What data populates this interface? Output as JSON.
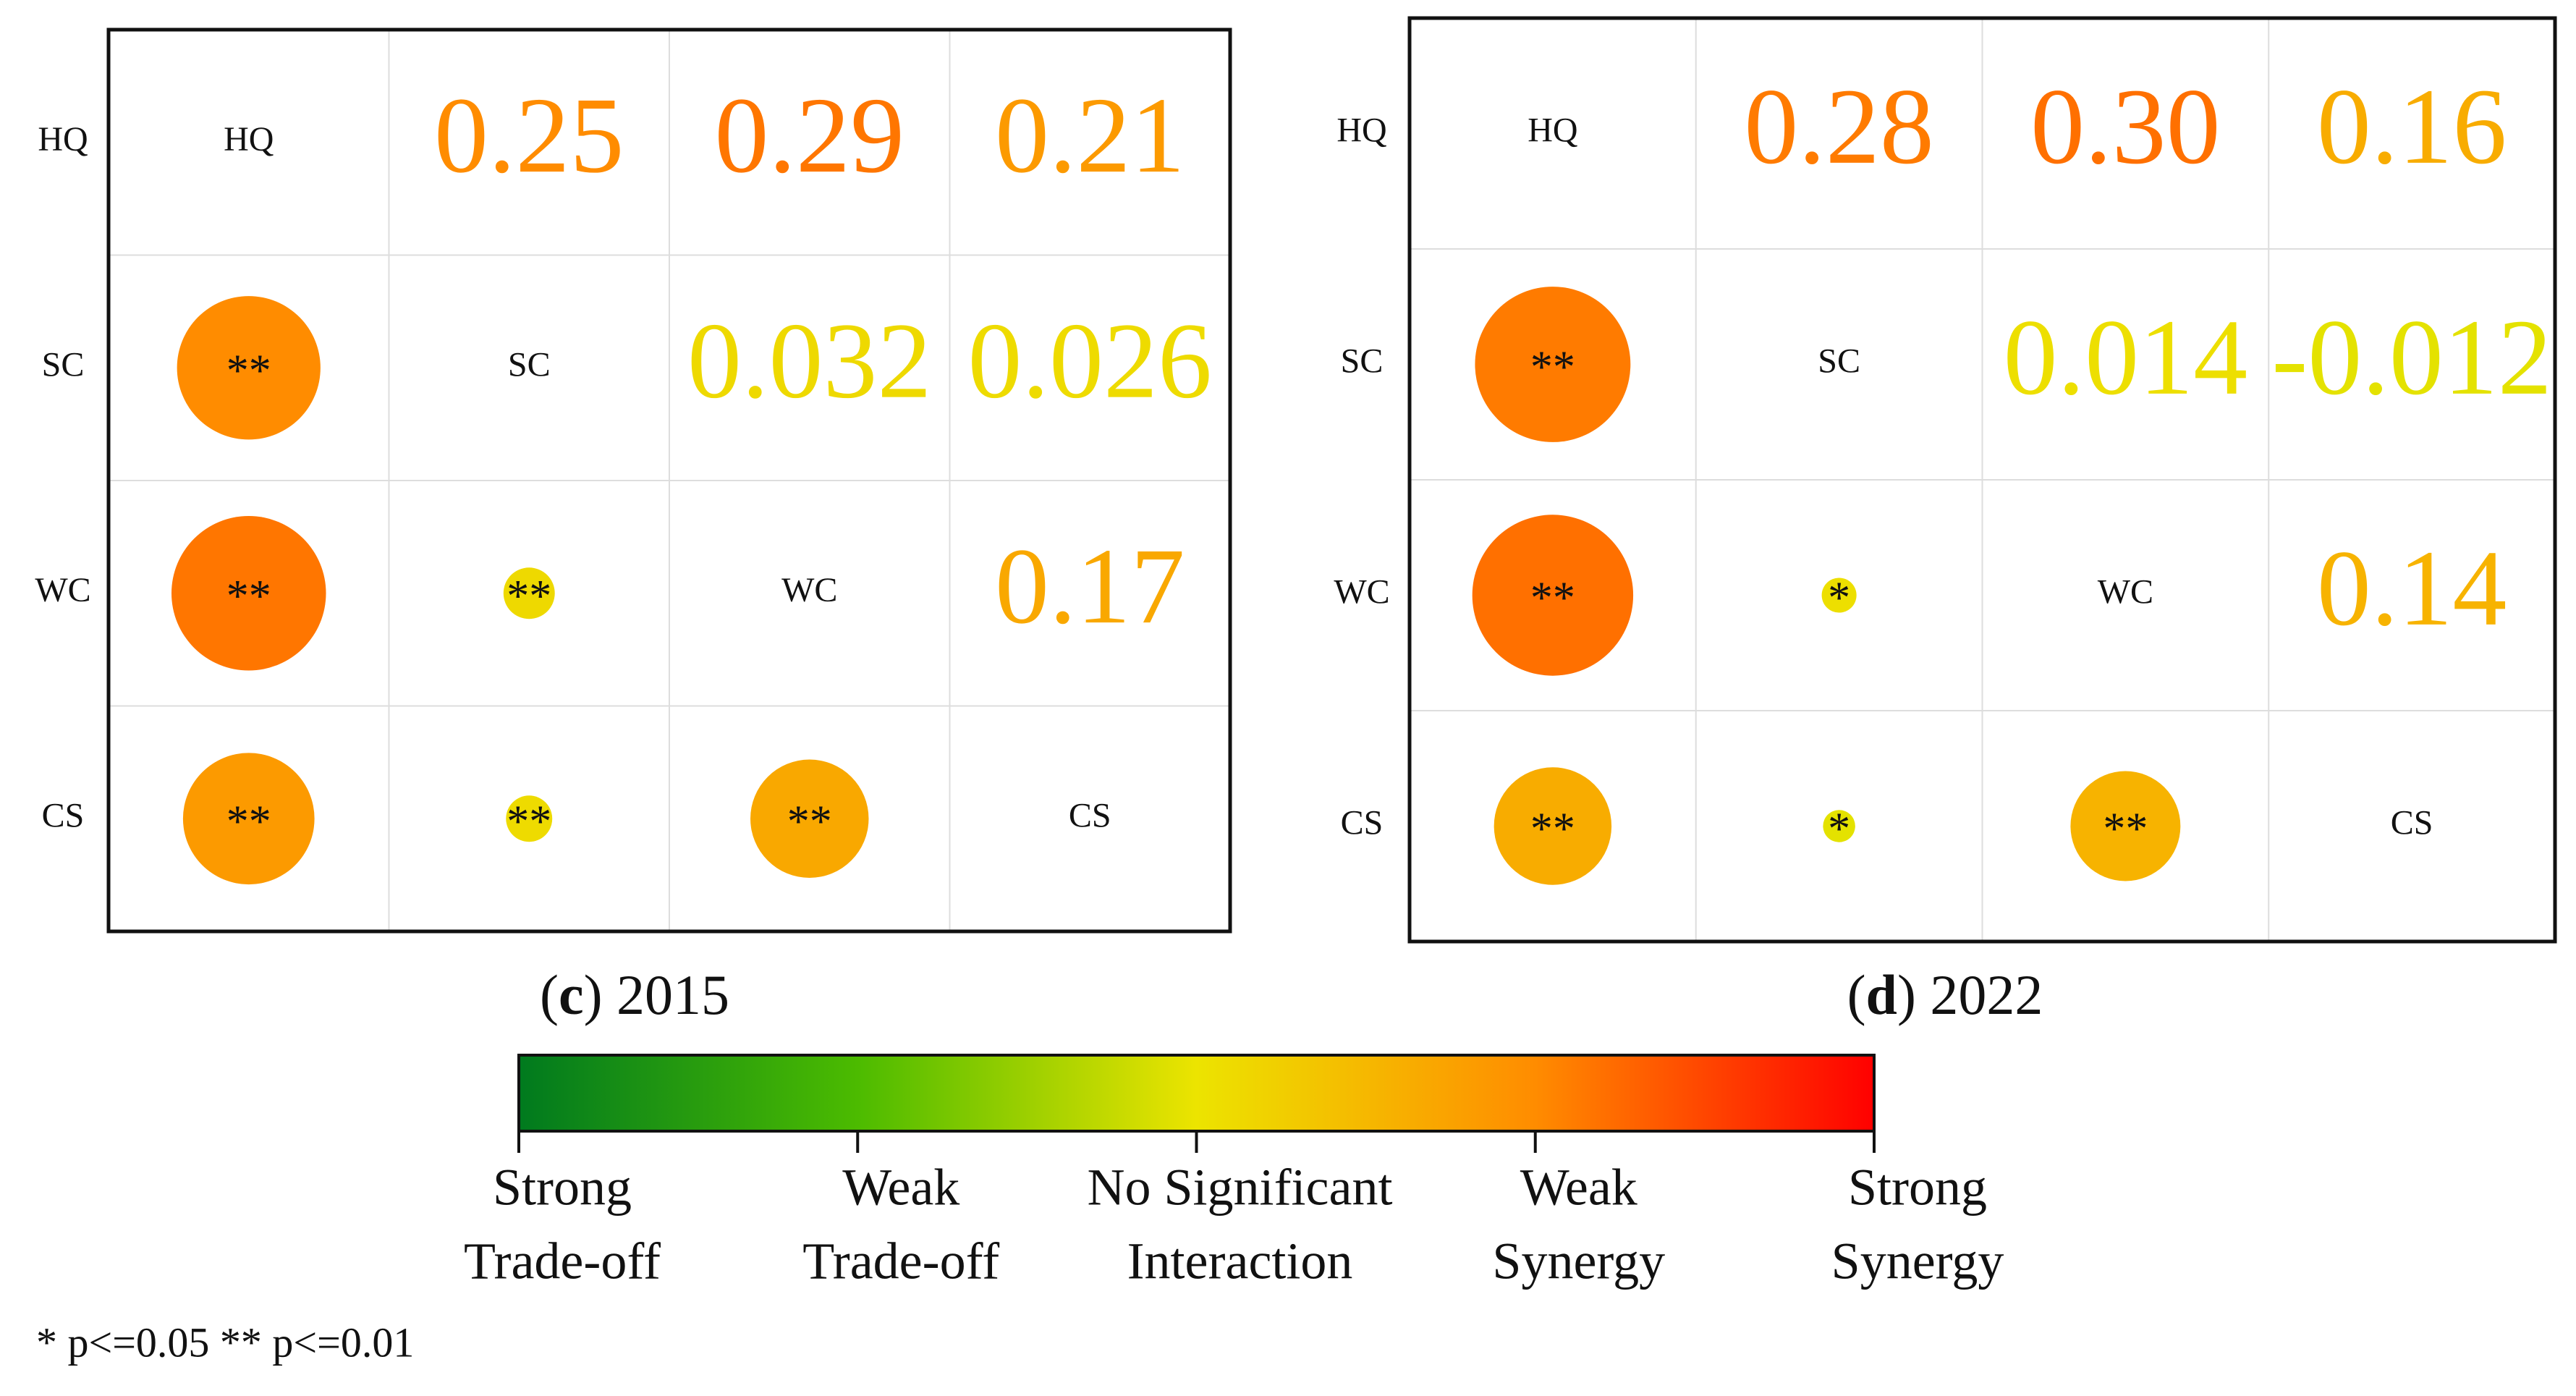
{
  "chart_data": [
    {
      "type": "correlation",
      "caption": [
        "(",
        "c",
        ") 2015"
      ],
      "variables": [
        "HQ",
        "SC",
        "WC",
        "CS"
      ],
      "values": [
        [
          null,
          0.25,
          0.29,
          0.21
        ],
        [
          null,
          null,
          0.032,
          0.026
        ],
        [
          null,
          null,
          null,
          0.17
        ],
        [
          null,
          null,
          null,
          null
        ]
      ],
      "value_labels": [
        [
          null,
          "0.25",
          "0.29",
          "0.21"
        ],
        [
          null,
          null,
          "0.032",
          "0.026"
        ],
        [
          null,
          null,
          null,
          "0.17"
        ],
        [
          null,
          null,
          null,
          null
        ]
      ],
      "significance": [
        [
          null,
          null,
          null,
          null
        ],
        [
          "**",
          null,
          null,
          null
        ],
        [
          "**",
          "**",
          null,
          null
        ],
        [
          "**",
          "**",
          "**",
          null
        ]
      ]
    },
    {
      "type": "correlation",
      "caption": [
        "(",
        "d",
        ") 2022"
      ],
      "variables": [
        "HQ",
        "SC",
        "WC",
        "CS"
      ],
      "values": [
        [
          null,
          0.28,
          0.3,
          0.16
        ],
        [
          null,
          null,
          0.014,
          -0.012
        ],
        [
          null,
          null,
          null,
          0.14
        ],
        [
          null,
          null,
          null,
          null
        ]
      ],
      "value_labels": [
        [
          null,
          "0.28",
          "0.30",
          "0.16"
        ],
        [
          null,
          null,
          "0.014",
          "-0.012"
        ],
        [
          null,
          null,
          null,
          "0.14"
        ],
        [
          null,
          null,
          null,
          null
        ]
      ],
      "significance": [
        [
          null,
          null,
          null,
          null
        ],
        [
          "**",
          null,
          null,
          null
        ],
        [
          "**",
          "*",
          null,
          null
        ],
        [
          "**",
          "*",
          "**",
          null
        ]
      ]
    }
  ],
  "colorbar": {
    "lim": [
      -0.5,
      0.5
    ],
    "colors": [
      "#007a1e",
      "#4cbb00",
      "#ece400",
      "#ff8c00",
      "#ff0000"
    ],
    "ticks": [
      {
        "value": -0.5,
        "label": [
          "Strong",
          "Trade-off"
        ]
      },
      {
        "value": -0.25,
        "label": [
          "Weak",
          "Trade-off"
        ]
      },
      {
        "value": 0,
        "label": [
          "No Significant",
          "Interaction"
        ]
      },
      {
        "value": 0.25,
        "label": [
          "Weak",
          "Synergy"
        ]
      },
      {
        "value": 0.5,
        "label": [
          "Strong",
          "Synergy"
        ]
      }
    ]
  },
  "note": "* p<=0.05  ** p<=0.01"
}
